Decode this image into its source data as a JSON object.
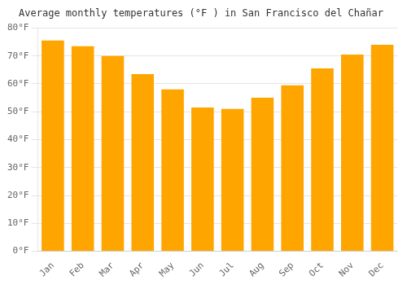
{
  "chart_data": {
    "type": "bar",
    "title": "Average monthly temperatures (°F ) in San Francisco del Chañar",
    "categories": [
      "Jan",
      "Feb",
      "Mar",
      "Apr",
      "May",
      "Jun",
      "Jul",
      "Aug",
      "Sep",
      "Oct",
      "Nov",
      "Dec"
    ],
    "values": [
      75.5,
      73.5,
      70.0,
      63.5,
      58.0,
      51.5,
      51.0,
      55.0,
      59.5,
      65.5,
      70.5,
      74.0
    ],
    "color": "#FFA500",
    "ylim": [
      0,
      80
    ],
    "yticks": [
      {
        "value": 0,
        "label": "0°F"
      },
      {
        "value": 10,
        "label": "10°F"
      },
      {
        "value": 20,
        "label": "20°F"
      },
      {
        "value": 30,
        "label": "30°F"
      },
      {
        "value": 40,
        "label": "40°F"
      },
      {
        "value": 50,
        "label": "50°F"
      },
      {
        "value": 60,
        "label": "60°F"
      },
      {
        "value": 70,
        "label": "70°F"
      },
      {
        "value": 80,
        "label": "80°F"
      }
    ],
    "grid": true
  }
}
